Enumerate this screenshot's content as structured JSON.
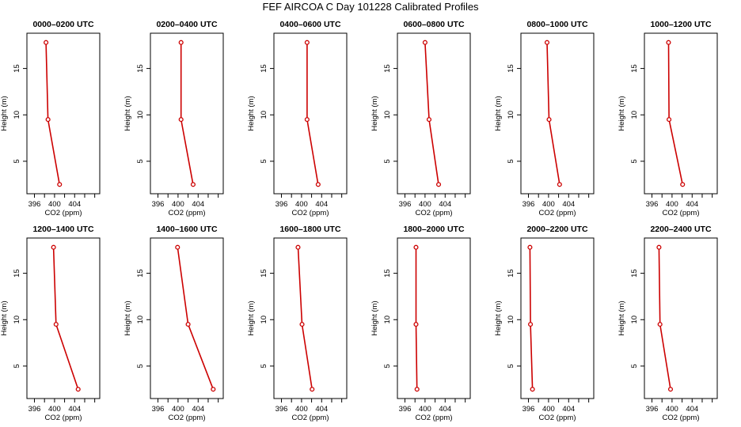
{
  "figure": {
    "title": "FEF AIRCOA C  Day 101228  Calibrated Profiles"
  },
  "chart_data": [
    {
      "type": "line",
      "title": "0000–0200 UTC",
      "xlabel": "CO2 (ppm)",
      "ylabel": "Height (m)",
      "xlim": [
        394.5,
        409
      ],
      "ylim": [
        1.5,
        18.8
      ],
      "xticks": [
        "396",
        "400",
        "404"
      ],
      "yticks": [
        "5",
        "10",
        "15"
      ],
      "x": [
        398.3,
        398.7,
        401.0
      ],
      "y": [
        17.8,
        9.5,
        2.5
      ],
      "color": "#cc0000"
    },
    {
      "type": "line",
      "title": "0200–0400 UTC",
      "xlabel": "CO2 (ppm)",
      "ylabel": "Height (m)",
      "xlim": [
        394.5,
        409
      ],
      "ylim": [
        1.5,
        18.8
      ],
      "xticks": [
        "396",
        "400",
        "404"
      ],
      "yticks": [
        "5",
        "10",
        "15"
      ],
      "x": [
        400.6,
        400.6,
        403.0
      ],
      "y": [
        17.8,
        9.5,
        2.5
      ],
      "color": "#cc0000"
    },
    {
      "type": "line",
      "title": "0400–0600 UTC",
      "xlabel": "CO2 (ppm)",
      "ylabel": "Height (m)",
      "xlim": [
        394.5,
        409
      ],
      "ylim": [
        1.5,
        18.8
      ],
      "xticks": [
        "396",
        "400",
        "404"
      ],
      "yticks": [
        "5",
        "10",
        "15"
      ],
      "x": [
        401.1,
        401.1,
        403.3
      ],
      "y": [
        17.8,
        9.5,
        2.5
      ],
      "color": "#cc0000"
    },
    {
      "type": "line",
      "title": "0600–0800 UTC",
      "xlabel": "CO2 (ppm)",
      "ylabel": "Height (m)",
      "xlim": [
        394.5,
        409
      ],
      "ylim": [
        1.5,
        18.8
      ],
      "xticks": [
        "396",
        "400",
        "404"
      ],
      "yticks": [
        "5",
        "10",
        "15"
      ],
      "x": [
        400.0,
        400.8,
        402.7
      ],
      "y": [
        17.8,
        9.5,
        2.5
      ],
      "color": "#cc0000"
    },
    {
      "type": "line",
      "title": "0800–1000 UTC",
      "xlabel": "CO2 (ppm)",
      "ylabel": "Height (m)",
      "xlim": [
        394.5,
        409
      ],
      "ylim": [
        1.5,
        18.8
      ],
      "xticks": [
        "396",
        "400",
        "404"
      ],
      "yticks": [
        "5",
        "10",
        "15"
      ],
      "x": [
        399.7,
        400.1,
        402.2
      ],
      "y": [
        17.8,
        9.5,
        2.5
      ],
      "color": "#cc0000"
    },
    {
      "type": "line",
      "title": "1000–1200 UTC",
      "xlabel": "CO2 (ppm)",
      "ylabel": "Height (m)",
      "xlim": [
        394.5,
        409
      ],
      "ylim": [
        1.5,
        18.8
      ],
      "xticks": [
        "396",
        "400",
        "404"
      ],
      "yticks": [
        "5",
        "10",
        "15"
      ],
      "x": [
        399.3,
        399.4,
        402.1
      ],
      "y": [
        17.8,
        9.5,
        2.5
      ],
      "color": "#cc0000"
    },
    {
      "type": "line",
      "title": "1200–1400 UTC",
      "xlabel": "CO2 (ppm)",
      "ylabel": "Height (m)",
      "xlim": [
        394.5,
        409
      ],
      "ylim": [
        1.5,
        18.8
      ],
      "xticks": [
        "396",
        "400",
        "404"
      ],
      "yticks": [
        "5",
        "10",
        "15"
      ],
      "x": [
        399.8,
        400.3,
        404.7
      ],
      "y": [
        17.8,
        9.5,
        2.5
      ],
      "color": "#cc0000"
    },
    {
      "type": "line",
      "title": "1400–1600 UTC",
      "xlabel": "CO2 (ppm)",
      "ylabel": "Height (m)",
      "xlim": [
        394.5,
        409
      ],
      "ylim": [
        1.5,
        18.8
      ],
      "xticks": [
        "396",
        "400",
        "404"
      ],
      "yticks": [
        "5",
        "10",
        "15"
      ],
      "x": [
        399.9,
        402.0,
        407.0
      ],
      "y": [
        17.8,
        9.5,
        2.5
      ],
      "color": "#cc0000"
    },
    {
      "type": "line",
      "title": "1600–1800 UTC",
      "xlabel": "CO2 (ppm)",
      "ylabel": "Height (m)",
      "xlim": [
        394.5,
        409
      ],
      "ylim": [
        1.5,
        18.8
      ],
      "xticks": [
        "396",
        "400",
        "404"
      ],
      "yticks": [
        "5",
        "10",
        "15"
      ],
      "x": [
        399.3,
        400.1,
        402.1
      ],
      "y": [
        17.8,
        9.5,
        2.5
      ],
      "color": "#cc0000"
    },
    {
      "type": "line",
      "title": "1800–2000 UTC",
      "xlabel": "CO2 (ppm)",
      "ylabel": "Height (m)",
      "xlim": [
        394.5,
        409
      ],
      "ylim": [
        1.5,
        18.8
      ],
      "xticks": [
        "396",
        "400",
        "404"
      ],
      "yticks": [
        "5",
        "10",
        "15"
      ],
      "x": [
        398.2,
        398.2,
        398.4
      ],
      "y": [
        17.8,
        9.5,
        2.5
      ],
      "color": "#cc0000"
    },
    {
      "type": "line",
      "title": "2000–2200 UTC",
      "xlabel": "CO2 (ppm)",
      "ylabel": "Height (m)",
      "xlim": [
        394.5,
        409
      ],
      "ylim": [
        1.5,
        18.8
      ],
      "xticks": [
        "396",
        "400",
        "404"
      ],
      "yticks": [
        "5",
        "10",
        "15"
      ],
      "x": [
        396.3,
        396.4,
        396.8
      ],
      "y": [
        17.8,
        9.5,
        2.5
      ],
      "color": "#cc0000"
    },
    {
      "type": "line",
      "title": "2200–2400 UTC",
      "xlabel": "CO2 (ppm)",
      "ylabel": "Height (m)",
      "xlim": [
        394.5,
        409
      ],
      "ylim": [
        1.5,
        18.8
      ],
      "xticks": [
        "396",
        "400",
        "404"
      ],
      "yticks": [
        "5",
        "10",
        "15"
      ],
      "x": [
        397.4,
        397.6,
        399.7
      ],
      "y": [
        17.8,
        9.5,
        2.5
      ],
      "color": "#cc0000"
    }
  ]
}
